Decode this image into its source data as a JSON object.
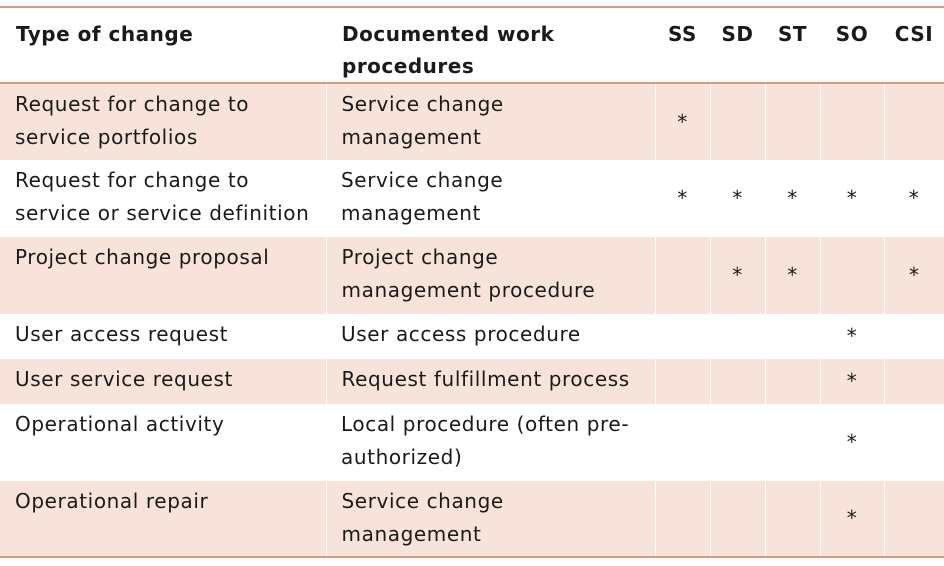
{
  "table": {
    "headers": {
      "type": "Type of change",
      "procedures": "Documented work procedures",
      "ss": "SS",
      "sd": "SD",
      "st": "ST",
      "so": "SO",
      "csi": "CSI"
    },
    "mark": "*",
    "rows": [
      {
        "type": "Request for change to service portfolios",
        "procedure": "Service change management",
        "ss": "*",
        "sd": "",
        "st": "",
        "so": "",
        "csi": ""
      },
      {
        "type": "Request for change to service or service definition",
        "procedure": "Service change management",
        "ss": "*",
        "sd": "*",
        "st": "*",
        "so": "*",
        "csi": "*"
      },
      {
        "type": "Project change proposal",
        "procedure": "Project change management procedure",
        "ss": "",
        "sd": "*",
        "st": "*",
        "so": "",
        "csi": "*"
      },
      {
        "type": "User access request",
        "procedure": "User access procedure",
        "ss": "",
        "sd": "",
        "st": "",
        "so": "*",
        "csi": ""
      },
      {
        "type": "User service request",
        "procedure": "Request fulfillment process",
        "ss": "",
        "sd": "",
        "st": "",
        "so": "*",
        "csi": ""
      },
      {
        "type": "Operational activity",
        "procedure": "Local procedure (often pre-authorized)",
        "ss": "",
        "sd": "",
        "st": "",
        "so": "*",
        "csi": ""
      },
      {
        "type": "Operational repair",
        "procedure": "Service change management",
        "ss": "",
        "sd": "",
        "st": "",
        "so": "*",
        "csi": ""
      }
    ]
  }
}
